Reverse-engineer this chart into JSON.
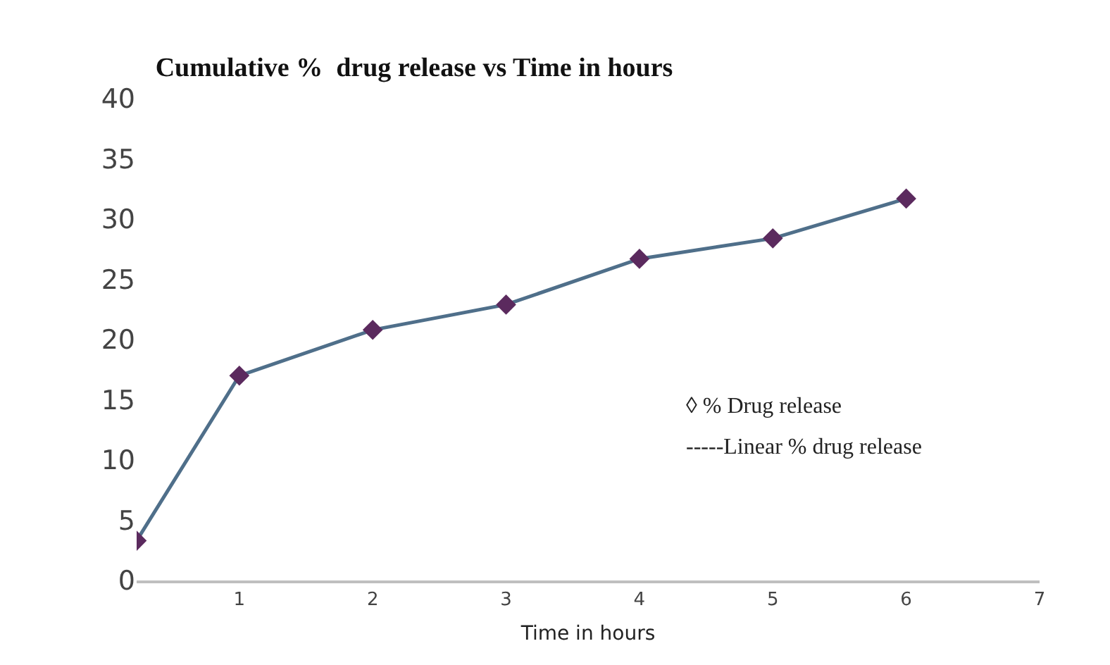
{
  "chart_data": {
    "type": "line",
    "title": "Cumulative %  drug release vs Time in hours",
    "xlabel": "Time in hours",
    "x": [
      0.23,
      1,
      2,
      3,
      4,
      5,
      6
    ],
    "series": [
      {
        "color": "#4f6f8a",
        "colors": [
          "#5b2a5e",
          "#5b2a5e",
          "#5b2a5e",
          "#5b2a5e",
          "#5b2a5e",
          "#5b2a5e",
          "#5b2a5e"
        ],
        "values": [
          3.3,
          17,
          20.8,
          22.9,
          26.7,
          28.4,
          31.7
        ]
      }
    ],
    "xlim": [
      0.23,
      7
    ],
    "xticks": [
      1,
      2,
      3,
      4,
      5,
      6,
      7
    ],
    "ylim": [
      0,
      40
    ],
    "yticks": [
      0,
      5,
      10,
      15,
      20,
      25,
      30,
      35,
      40
    ],
    "marker": "diamond",
    "line_style": "solid",
    "annotations": [
      "◊ % Drug release",
      "-----Linear % drug release"
    ]
  }
}
